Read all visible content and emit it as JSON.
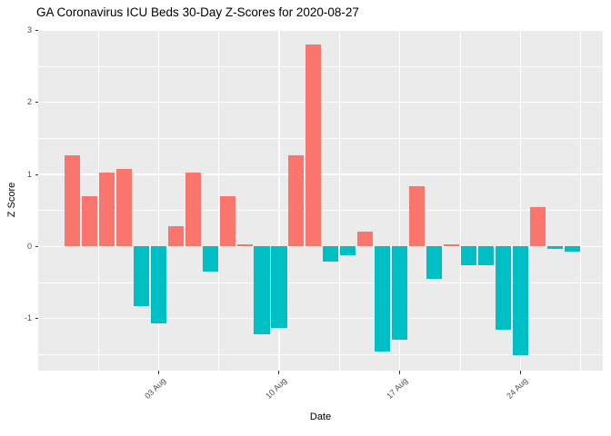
{
  "title": "GA Coronavirus ICU Beds 30-Day Z-Scores for 2020-08-27",
  "chart_data": {
    "type": "bar",
    "title": "GA Coronavirus ICU Beds 30-Day Z-Scores for 2020-08-27",
    "xlabel": "Date",
    "ylabel": "Z Score",
    "x": [
      "2020-07-29",
      "2020-07-30",
      "2020-07-31",
      "2020-08-01",
      "2020-08-02",
      "2020-08-03",
      "2020-08-04",
      "2020-08-05",
      "2020-08-06",
      "2020-08-07",
      "2020-08-08",
      "2020-08-09",
      "2020-08-10",
      "2020-08-11",
      "2020-08-12",
      "2020-08-13",
      "2020-08-14",
      "2020-08-15",
      "2020-08-16",
      "2020-08-17",
      "2020-08-18",
      "2020-08-19",
      "2020-08-20",
      "2020-08-21",
      "2020-08-22",
      "2020-08-23",
      "2020-08-24",
      "2020-08-25",
      "2020-08-26",
      "2020-08-27"
    ],
    "values": [
      1.27,
      0.7,
      1.03,
      1.08,
      -0.83,
      -1.07,
      0.28,
      1.02,
      -0.35,
      0.7,
      0.03,
      -1.22,
      -1.13,
      1.26,
      2.8,
      -0.21,
      -0.12,
      0.21,
      -1.46,
      -1.3,
      0.84,
      -0.45,
      0.03,
      -0.26,
      -0.26,
      -1.16,
      -1.51,
      0.55,
      -0.03,
      -0.07
    ],
    "x_tick_labels": [
      "03 Aug",
      "10 Aug",
      "17 Aug",
      "24 Aug"
    ],
    "x_tick_dates": [
      "2020-08-03",
      "2020-08-10",
      "2020-08-17",
      "2020-08-24"
    ],
    "y_ticks": [
      "3",
      "2",
      "1",
      "0",
      "-1"
    ],
    "y_tick_values": [
      3,
      2,
      1,
      0,
      -1
    ],
    "ylim": [
      -1.72,
      3.0
    ],
    "grid": true,
    "legend": "none",
    "colors": {
      "positive": "#F8766D",
      "negative": "#00BFC4",
      "panel_bg": "#EBEBEB",
      "grid": "#FFFFFF",
      "axis_text": "#4D4D4D",
      "tick_mark": "#333333"
    }
  }
}
